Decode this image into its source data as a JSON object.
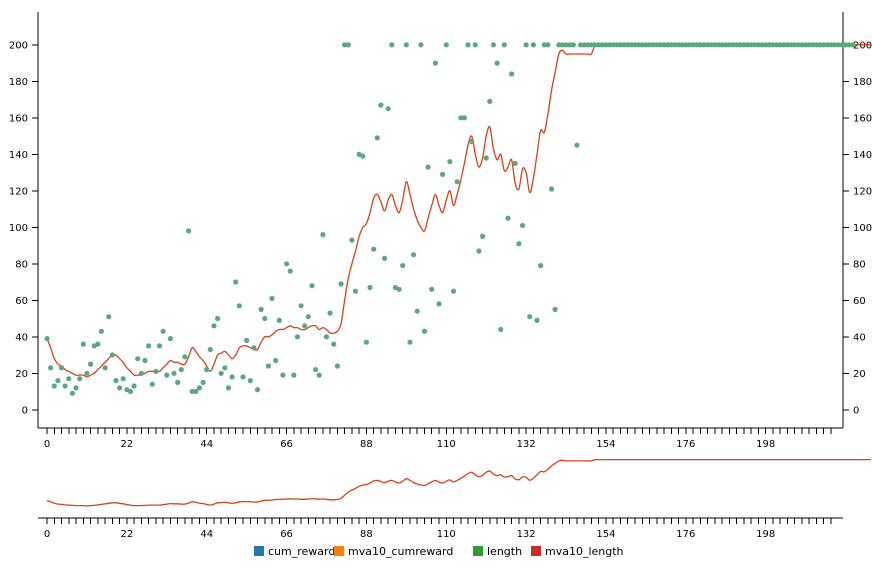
{
  "chart_data": {
    "type": "scatter",
    "colors": {
      "cum_reward": "#1f77b4",
      "mva10_cumreward": "#ff7f0e",
      "length": "#2ca02c",
      "mva10_length": "#d62728",
      "dots": "#5aa882",
      "line": "#d9401a"
    },
    "x_ticks": [
      "0",
      "22",
      "44",
      "66",
      "88",
      "110",
      "132",
      "154",
      "176",
      "198"
    ],
    "y_ticks": [
      "0",
      "20",
      "40",
      "60",
      "80",
      "100",
      "120",
      "140",
      "160",
      "180",
      "200"
    ],
    "xlim": [
      0,
      216
    ],
    "ylim": [
      -10,
      218
    ],
    "legend": {
      "position": "bottom",
      "items": [
        "cum_reward",
        "mva10_cumreward",
        "length",
        "mva10_length"
      ]
    },
    "series": [
      {
        "name": "length",
        "style": "points",
        "values": [
          39,
          23,
          13,
          16,
          23,
          13,
          17,
          9,
          12,
          17,
          36,
          20,
          25,
          35,
          36,
          43,
          23,
          51,
          30,
          16,
          12,
          17,
          11,
          10,
          13,
          28,
          20,
          27,
          35,
          14,
          21,
          35,
          43,
          19,
          39,
          20,
          15,
          22,
          29,
          98,
          10,
          10,
          12,
          15,
          22,
          33,
          46,
          50,
          20,
          23,
          12,
          18,
          70,
          57,
          18,
          38,
          16,
          34,
          11,
          55,
          50,
          24,
          61,
          27,
          49,
          19,
          80,
          76,
          19,
          40,
          57,
          46,
          51,
          68,
          22,
          19,
          96,
          40,
          53,
          36,
          24,
          69,
          200,
          200,
          93,
          65,
          140,
          139,
          37,
          67,
          88,
          149,
          167,
          83,
          165,
          200,
          67,
          66,
          79,
          200,
          37,
          85,
          54,
          200,
          43,
          133,
          66,
          190,
          58,
          129,
          200,
          136,
          65,
          125,
          160,
          160,
          200,
          147,
          200,
          87,
          95,
          138,
          169,
          200,
          190,
          44,
          200,
          105,
          184,
          135,
          91,
          101,
          200,
          51,
          200,
          49,
          79,
          200,
          200,
          121,
          55,
          200,
          200,
          200,
          200,
          200,
          145,
          200,
          200,
          200,
          200,
          200,
          200,
          200,
          200,
          200,
          200,
          200,
          200,
          200,
          200,
          200,
          200,
          200,
          200,
          200,
          200,
          200,
          200,
          200,
          200,
          200,
          200,
          200,
          200,
          200,
          200,
          200,
          200,
          200,
          200,
          200,
          200,
          200,
          200,
          200,
          200,
          200,
          200,
          200,
          200,
          200,
          200,
          200,
          200,
          200,
          200,
          200,
          200,
          200,
          200,
          200,
          200,
          200,
          200,
          200,
          200,
          200,
          200,
          200,
          200,
          200,
          200,
          200,
          200,
          200,
          200,
          200,
          200,
          200,
          200,
          200,
          200
        ]
      },
      {
        "name": "mva10_length",
        "style": "line",
        "values": [
          39,
          34,
          28,
          25,
          24,
          22,
          21,
          20,
          19,
          19,
          19,
          18,
          19,
          20,
          22,
          24,
          26,
          28,
          30,
          30,
          28,
          26,
          23,
          21,
          19,
          19,
          19,
          20,
          21,
          21,
          21,
          21,
          23,
          25,
          27,
          26,
          26,
          25,
          25,
          29,
          34,
          32,
          29,
          27,
          24,
          21,
          25,
          30,
          31,
          32,
          30,
          28,
          30,
          34,
          35,
          35,
          34,
          33,
          33,
          37,
          40,
          40,
          41,
          43,
          44,
          44,
          45,
          46,
          45,
          45,
          44,
          44,
          45,
          46,
          46,
          44,
          45,
          44,
          42,
          42,
          43,
          47,
          60,
          72,
          80,
          87,
          95,
          100,
          102,
          108,
          116,
          118,
          114,
          109,
          115,
          118,
          112,
          108,
          115,
          125,
          118,
          110,
          104,
          100,
          98,
          105,
          112,
          118,
          112,
          108,
          115,
          120,
          112,
          118,
          126,
          135,
          145,
          150,
          140,
          133,
          138,
          150,
          155,
          143,
          137,
          140,
          131,
          133,
          137,
          124,
          121,
          132,
          130,
          119,
          127,
          140,
          153,
          152,
          162,
          175,
          185,
          195,
          197,
          195,
          195,
          195,
          195,
          195,
          195,
          195,
          195,
          200,
          200,
          200,
          200,
          200,
          200,
          200,
          200,
          200,
          200,
          200,
          200,
          200,
          200,
          200,
          200,
          200,
          200,
          200,
          200,
          200,
          200,
          200,
          200,
          200,
          200,
          200,
          200,
          200,
          200,
          200,
          200,
          200,
          200,
          200,
          200,
          200,
          200,
          200,
          200,
          200,
          200,
          200,
          200,
          200,
          200,
          200,
          200,
          200,
          200,
          200,
          200,
          200,
          200,
          200,
          200,
          200,
          200,
          200,
          200,
          200,
          200,
          200,
          200,
          200,
          200,
          200,
          200,
          200,
          200,
          200,
          200,
          200,
          200,
          200,
          200,
          200
        ]
      }
    ]
  }
}
